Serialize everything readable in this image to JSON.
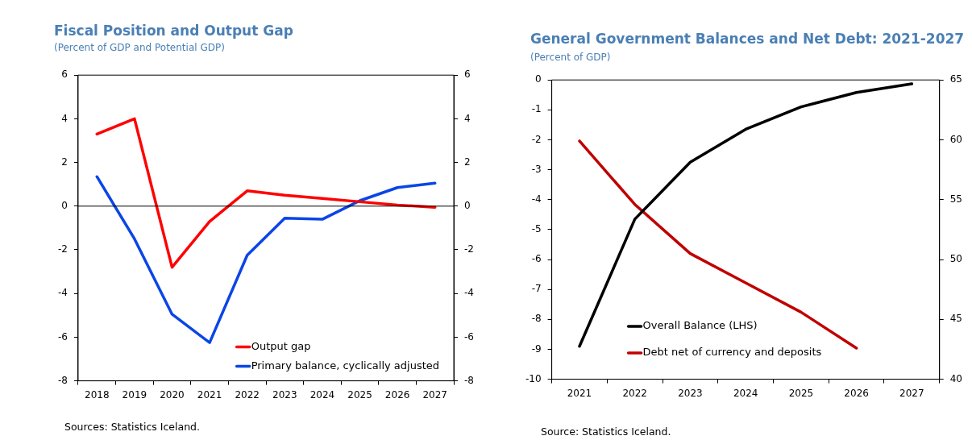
{
  "chart_data": [
    {
      "type": "line",
      "title": "Fiscal Position and Output Gap",
      "subtitle": "(Percent of GDP and Potential GDP)",
      "categories": [
        "2018",
        "2019",
        "2020",
        "2021",
        "2022",
        "2023",
        "2024",
        "2025",
        "2026",
        "2027"
      ],
      "series": [
        {
          "name": "Output gap",
          "color": "#ff0000",
          "values": [
            3.3,
            4.0,
            -2.8,
            -0.7,
            0.7,
            0.5,
            0.35,
            0.2,
            0.05,
            -0.05
          ]
        },
        {
          "name": "Primary balance, cyclically adjusted",
          "color": "#0a46e6",
          "values": [
            1.35,
            -1.5,
            -4.95,
            -6.25,
            -2.25,
            -0.55,
            -0.6,
            0.25,
            0.85,
            1.05
          ]
        }
      ],
      "ylim": [
        -8,
        6
      ],
      "yticks": [
        -8,
        -6,
        -4,
        -2,
        0,
        2,
        4,
        6
      ],
      "y2lim": [
        -8,
        6
      ],
      "y2ticks": [
        -8,
        -6,
        -4,
        -2,
        0,
        2,
        4,
        6
      ],
      "ref_lines": [
        {
          "axis": "y",
          "value": 0,
          "color": "#000000"
        }
      ],
      "grid": false,
      "legend": "bottom right",
      "marker": "none",
      "line_style": "solid",
      "annotations": [
        "Sources: Statistics Iceland."
      ]
    },
    {
      "type": "line",
      "title": "General Government Balances and Net Debt: 2021-2027",
      "subtitle": "(Percent of GDP)",
      "categories": [
        "2021",
        "2022",
        "2023",
        "2024",
        "2025",
        "2026",
        "2027"
      ],
      "series": [
        {
          "name": "Overall Balance (LHS)",
          "color": "#000000",
          "values": [
            -8.9,
            -4.65,
            -2.75,
            -1.65,
            -0.9,
            -0.42,
            -0.13
          ]
        },
        {
          "name": "Debt net of currency and deposits",
          "color": "#c00000",
          "axis": "y2",
          "values": [
            59.9,
            54.6,
            50.5,
            48.05,
            45.6,
            42.6,
            null
          ]
        }
      ],
      "ylim": [
        -10,
        0
      ],
      "yticks": [
        -10,
        -9,
        -8,
        -7,
        -6,
        -5,
        -4,
        -3,
        -2,
        -1,
        0
      ],
      "y2lim": [
        40,
        65
      ],
      "y2ticks": [
        40,
        45,
        50,
        55,
        60,
        65
      ],
      "grid": false,
      "legend": "bottom left",
      "marker": "none",
      "line_style": "solid",
      "annotations": [
        "Source: Statistics Iceland."
      ]
    }
  ]
}
